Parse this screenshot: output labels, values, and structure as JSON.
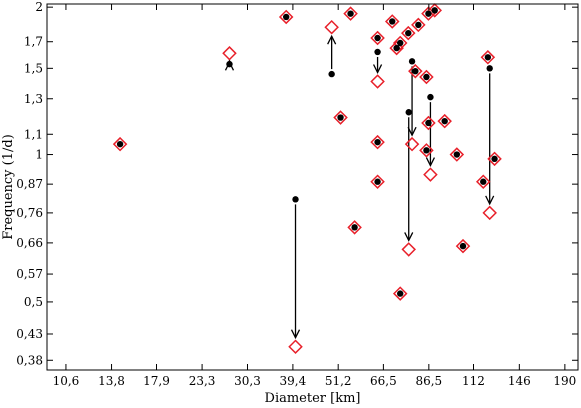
{
  "chart_data": {
    "type": "scatter",
    "title": "",
    "xlabel": "Diameter [km]",
    "ylabel": "Frequency (1/d)",
    "x_scale": "log",
    "y_scale": "log",
    "xlim": [
      9.5,
      205
    ],
    "ylim": [
      0.363,
      2.03
    ],
    "x_ticks": [
      10.6,
      13.8,
      17.9,
      23.3,
      30.3,
      39.4,
      51.2,
      66.5,
      86.5,
      112,
      146,
      190
    ],
    "x_tick_labels": [
      "10,6",
      "13,8",
      "17,9",
      "23,3",
      "30,3",
      "39,4",
      "51,2",
      "66,5",
      "86,5",
      "112",
      "146",
      "190"
    ],
    "y_ticks": [
      0.38,
      0.43,
      0.5,
      0.57,
      0.66,
      0.76,
      0.87,
      1,
      1.1,
      1.3,
      1.5,
      1.7,
      2
    ],
    "y_tick_labels": [
      "0,38",
      "0,43",
      "0,5",
      "0,57",
      "0,66",
      "0,76",
      "0,87",
      "1",
      "1,1",
      "1,3",
      "1,5",
      "1,7",
      "2"
    ],
    "grid": false,
    "legend": "none",
    "colors": {
      "open_marker": "#e8202a",
      "filled_marker": "#000000",
      "arrow": "#000000"
    },
    "series": [
      {
        "marker": "filled-circle",
        "points": [
          {
            "x": 14.5,
            "y": 1.05
          },
          {
            "x": 27.3,
            "y": 1.53
          },
          {
            "x": 37.9,
            "y": 1.91
          },
          {
            "x": 40.0,
            "y": 0.81
          },
          {
            "x": 49.3,
            "y": 1.46
          },
          {
            "x": 51.9,
            "y": 1.19
          },
          {
            "x": 55.0,
            "y": 1.94
          },
          {
            "x": 56.3,
            "y": 0.71
          },
          {
            "x": 64.3,
            "y": 1.73
          },
          {
            "x": 64.3,
            "y": 1.62
          },
          {
            "x": 64.3,
            "y": 1.06
          },
          {
            "x": 64.3,
            "y": 0.88
          },
          {
            "x": 70.0,
            "y": 1.87
          },
          {
            "x": 71.8,
            "y": 1.65
          },
          {
            "x": 73.3,
            "y": 1.69
          },
          {
            "x": 73.3,
            "y": 0.52
          },
          {
            "x": 76.8,
            "y": 1.77
          },
          {
            "x": 77.0,
            "y": 1.22
          },
          {
            "x": 78.5,
            "y": 1.55
          },
          {
            "x": 80.0,
            "y": 1.48
          },
          {
            "x": 81.4,
            "y": 1.84
          },
          {
            "x": 85.3,
            "y": 1.44
          },
          {
            "x": 85.3,
            "y": 1.02
          },
          {
            "x": 86.3,
            "y": 1.94
          },
          {
            "x": 86.3,
            "y": 1.16
          },
          {
            "x": 87.3,
            "y": 1.31
          },
          {
            "x": 89.5,
            "y": 1.97
          },
          {
            "x": 94.8,
            "y": 1.17
          },
          {
            "x": 101.7,
            "y": 1.0
          },
          {
            "x": 105.4,
            "y": 0.65
          },
          {
            "x": 118.5,
            "y": 0.88
          },
          {
            "x": 121.7,
            "y": 1.58
          },
          {
            "x": 123.0,
            "y": 1.5
          },
          {
            "x": 126.5,
            "y": 0.98
          }
        ]
      },
      {
        "marker": "open-diamond",
        "points": [
          {
            "x": 14.5,
            "y": 1.05
          },
          {
            "x": 27.3,
            "y": 1.61
          },
          {
            "x": 37.9,
            "y": 1.91
          },
          {
            "x": 40.0,
            "y": 0.405
          },
          {
            "x": 49.3,
            "y": 1.82
          },
          {
            "x": 51.9,
            "y": 1.19
          },
          {
            "x": 55.0,
            "y": 1.94
          },
          {
            "x": 56.3,
            "y": 0.71
          },
          {
            "x": 64.3,
            "y": 1.73
          },
          {
            "x": 64.3,
            "y": 1.41
          },
          {
            "x": 64.3,
            "y": 1.06
          },
          {
            "x": 64.3,
            "y": 0.88
          },
          {
            "x": 70.0,
            "y": 1.87
          },
          {
            "x": 71.8,
            "y": 1.65
          },
          {
            "x": 73.3,
            "y": 1.69
          },
          {
            "x": 73.3,
            "y": 0.52
          },
          {
            "x": 76.8,
            "y": 1.77
          },
          {
            "x": 77.0,
            "y": 0.64
          },
          {
            "x": 78.5,
            "y": 1.05
          },
          {
            "x": 80.0,
            "y": 1.48
          },
          {
            "x": 81.4,
            "y": 1.84
          },
          {
            "x": 85.3,
            "y": 1.44
          },
          {
            "x": 85.3,
            "y": 1.02
          },
          {
            "x": 86.3,
            "y": 1.94
          },
          {
            "x": 86.3,
            "y": 1.16
          },
          {
            "x": 87.3,
            "y": 0.91
          },
          {
            "x": 89.5,
            "y": 1.97
          },
          {
            "x": 94.8,
            "y": 1.17
          },
          {
            "x": 101.7,
            "y": 1.0
          },
          {
            "x": 105.4,
            "y": 0.65
          },
          {
            "x": 118.5,
            "y": 0.88
          },
          {
            "x": 121.7,
            "y": 1.58
          },
          {
            "x": 123.0,
            "y": 0.76
          },
          {
            "x": 126.5,
            "y": 0.98
          }
        ]
      }
    ],
    "arrows": [
      {
        "x": 27.3,
        "from": 1.53,
        "to": 1.61
      },
      {
        "x": 40.0,
        "from": 0.81,
        "to": 0.405
      },
      {
        "x": 49.3,
        "from": 1.46,
        "to": 1.82
      },
      {
        "x": 64.3,
        "from": 1.62,
        "to": 1.41
      },
      {
        "x": 77.0,
        "from": 1.22,
        "to": 0.64
      },
      {
        "x": 78.5,
        "from": 1.55,
        "to": 1.05
      },
      {
        "x": 87.3,
        "from": 1.31,
        "to": 0.91
      },
      {
        "x": 123.0,
        "from": 1.5,
        "to": 0.76
      }
    ]
  }
}
